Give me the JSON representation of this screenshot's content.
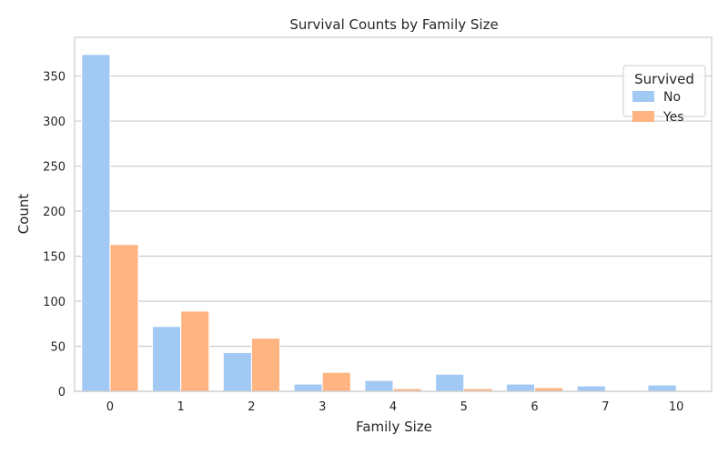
{
  "chart_data": {
    "type": "bar",
    "title": "Survival Counts by Family Size",
    "xlabel": "Family Size",
    "ylabel": "Count",
    "categories": [
      "0",
      "1",
      "2",
      "3",
      "4",
      "5",
      "6",
      "7",
      "10"
    ],
    "series": [
      {
        "name": "No",
        "color": "#a1c9f4",
        "values": [
          374,
          72,
          43,
          8,
          12,
          19,
          8,
          6,
          7
        ]
      },
      {
        "name": "Yes",
        "color": "#ffb482",
        "values": [
          163,
          89,
          59,
          21,
          3,
          3,
          4,
          0,
          0
        ]
      }
    ],
    "ylim": [
      0,
      393
    ],
    "yticks": [
      0,
      50,
      100,
      150,
      200,
      250,
      300,
      350
    ],
    "grid": true,
    "legend": {
      "title": "Survived",
      "placement": "top-right"
    }
  }
}
